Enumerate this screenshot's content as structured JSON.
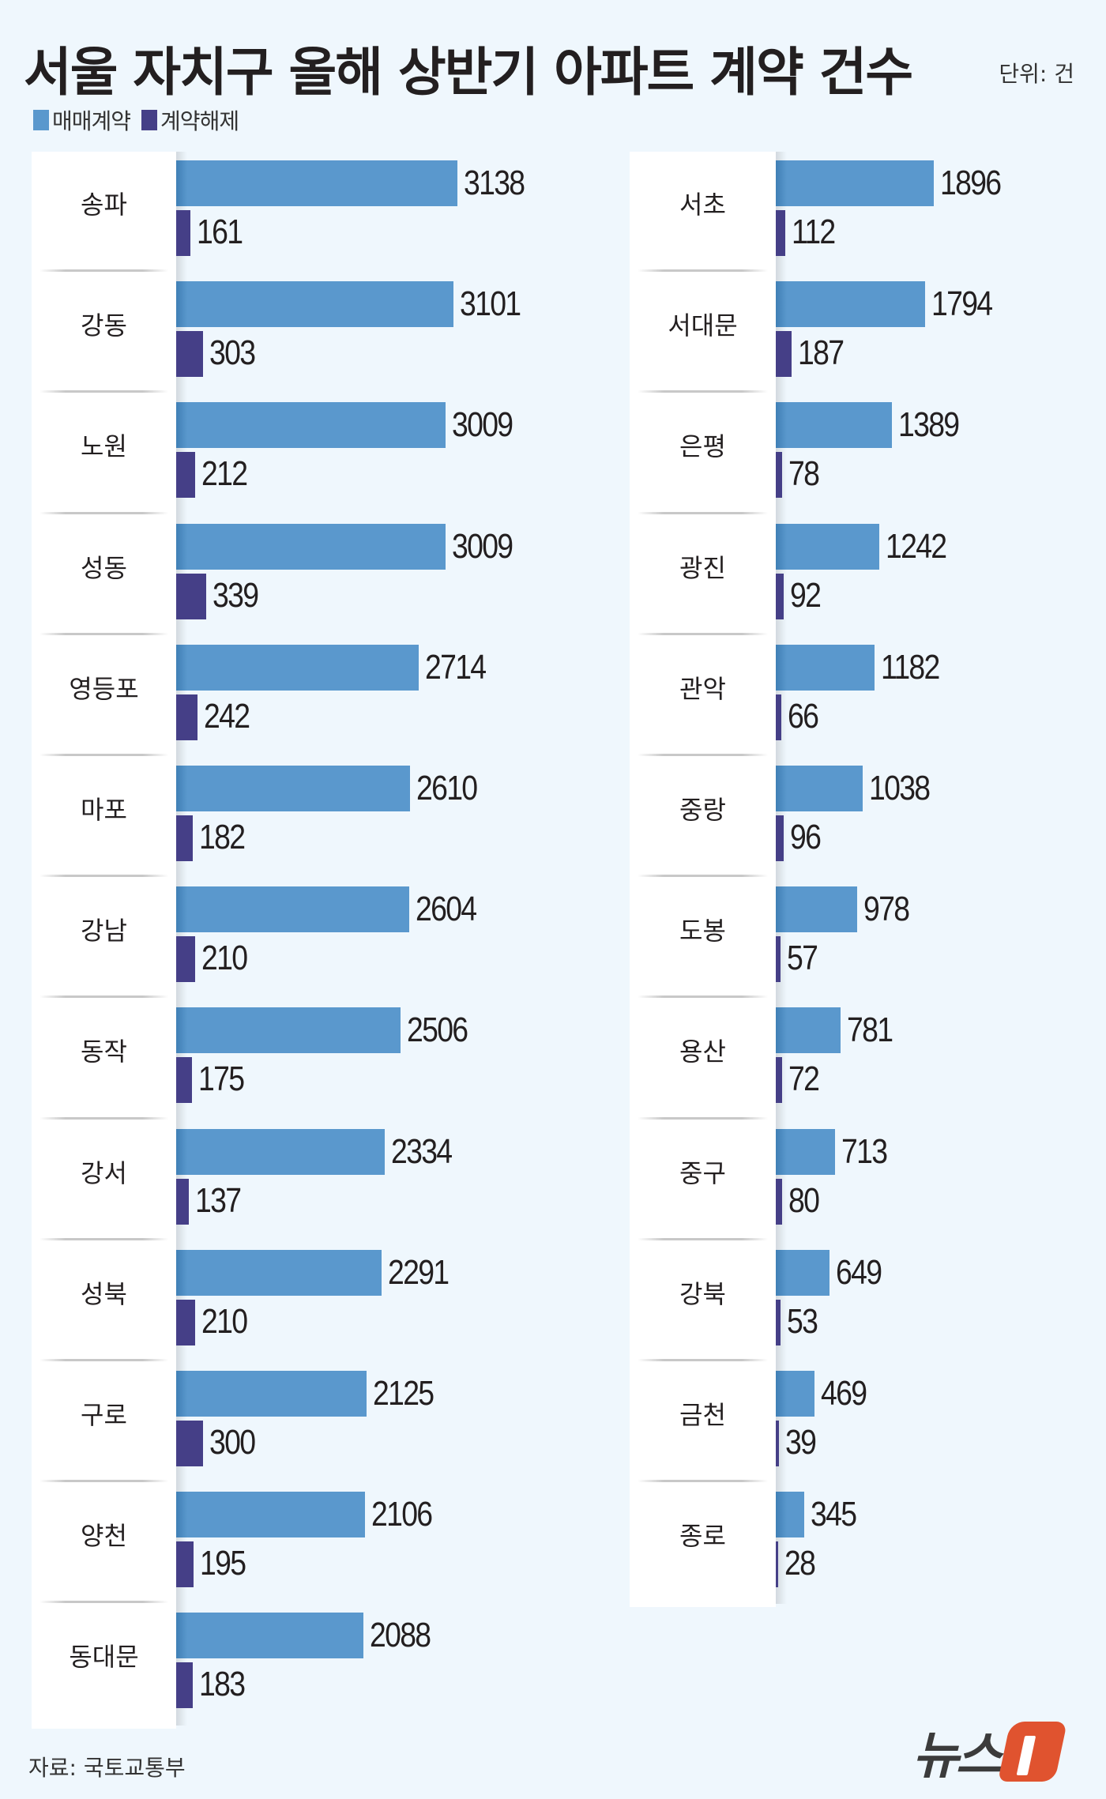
{
  "header": {
    "title": "서울 자치구 올해 상반기 아파트 계약 건수",
    "unit": "단위: 건"
  },
  "legend": [
    {
      "label": "매매계약",
      "color": "#5a98cd"
    },
    {
      "label": "계약해제",
      "color": "#453f87"
    }
  ],
  "footer": {
    "source": "자료: 국토교통부",
    "logo_text": "뉴스",
    "logo_mark": "1"
  },
  "colors": {
    "sale": "#5a98cd",
    "cancel": "#453f87",
    "background": "#eff7fd",
    "logo_accent": "#e0532f"
  },
  "chart_data": {
    "type": "bar",
    "orientation": "horizontal",
    "title": "서울 자치구 올해 상반기 아파트 계약 건수",
    "unit": "건",
    "legend_position": "top-left",
    "grid": false,
    "categories": [
      "송파",
      "강동",
      "노원",
      "성동",
      "영등포",
      "마포",
      "강남",
      "동작",
      "강서",
      "성북",
      "구로",
      "양천",
      "동대문",
      "서초",
      "서대문",
      "은평",
      "광진",
      "관악",
      "중랑",
      "도봉",
      "용산",
      "중구",
      "강북",
      "금천",
      "종로"
    ],
    "series": [
      {
        "name": "매매계약",
        "values": [
          3138,
          3101,
          3009,
          3009,
          2714,
          2610,
          2604,
          2506,
          2334,
          2291,
          2125,
          2106,
          2088,
          1896,
          1794,
          1389,
          1242,
          1182,
          1038,
          978,
          781,
          713,
          649,
          469,
          345
        ]
      },
      {
        "name": "계약해제",
        "values": [
          161,
          303,
          212,
          339,
          242,
          182,
          210,
          175,
          137,
          210,
          300,
          195,
          183,
          112,
          187,
          78,
          92,
          66,
          96,
          57,
          72,
          80,
          53,
          39,
          28
        ]
      }
    ],
    "panels": [
      {
        "rows": [
          {
            "district": "송파",
            "sale": 3138,
            "cancel": 161
          },
          {
            "district": "강동",
            "sale": 3101,
            "cancel": 303
          },
          {
            "district": "노원",
            "sale": 3009,
            "cancel": 212
          },
          {
            "district": "성동",
            "sale": 3009,
            "cancel": 339
          },
          {
            "district": "영등포",
            "sale": 2714,
            "cancel": 242
          },
          {
            "district": "마포",
            "sale": 2610,
            "cancel": 182
          },
          {
            "district": "강남",
            "sale": 2604,
            "cancel": 210
          },
          {
            "district": "동작",
            "sale": 2506,
            "cancel": 175
          },
          {
            "district": "강서",
            "sale": 2334,
            "cancel": 137
          },
          {
            "district": "성북",
            "sale": 2291,
            "cancel": 210
          },
          {
            "district": "구로",
            "sale": 2125,
            "cancel": 300
          },
          {
            "district": "양천",
            "sale": 2106,
            "cancel": 195
          },
          {
            "district": "동대문",
            "sale": 2088,
            "cancel": 183
          }
        ]
      },
      {
        "rows": [
          {
            "district": "서초",
            "sale": 1896,
            "cancel": 112
          },
          {
            "district": "서대문",
            "sale": 1794,
            "cancel": 187
          },
          {
            "district": "은평",
            "sale": 1389,
            "cancel": 78
          },
          {
            "district": "광진",
            "sale": 1242,
            "cancel": 92
          },
          {
            "district": "관악",
            "sale": 1182,
            "cancel": 66
          },
          {
            "district": "중랑",
            "sale": 1038,
            "cancel": 96
          },
          {
            "district": "도봉",
            "sale": 978,
            "cancel": 57
          },
          {
            "district": "용산",
            "sale": 781,
            "cancel": 72
          },
          {
            "district": "중구",
            "sale": 713,
            "cancel": 80
          },
          {
            "district": "강북",
            "sale": 649,
            "cancel": 53
          },
          {
            "district": "금천",
            "sale": 469,
            "cancel": 39
          },
          {
            "district": "종로",
            "sale": 345,
            "cancel": 28
          }
        ]
      }
    ]
  }
}
